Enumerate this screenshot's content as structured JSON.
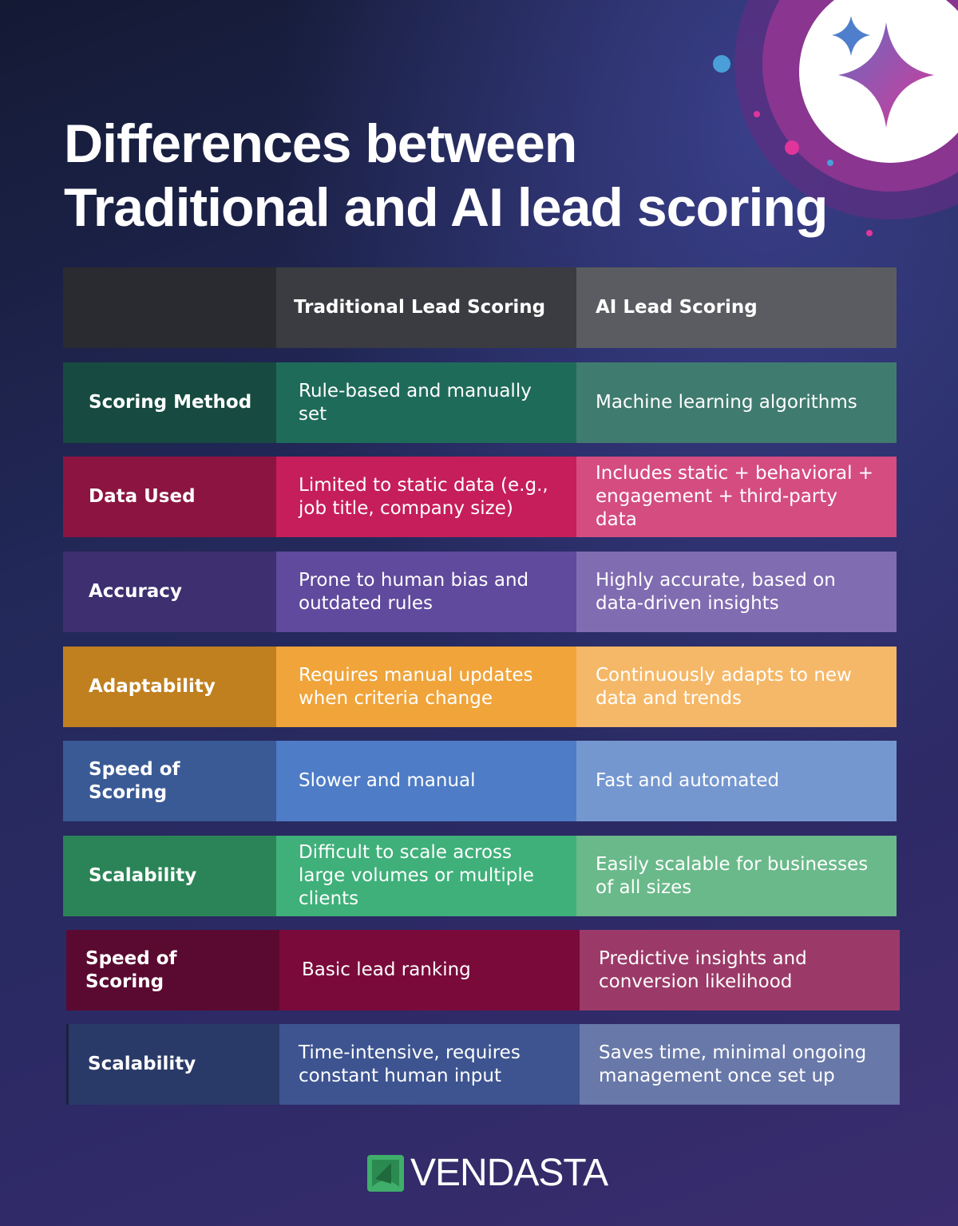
{
  "title_line1": "Differences between",
  "title_line2": "Traditional and AI lead scoring",
  "header": {
    "blank": "",
    "traditional": "Traditional Lead Scoring",
    "ai": "AI Lead Scoring",
    "colors": [
      "#2a2b30",
      "#3b3c41",
      "#5b5c61"
    ]
  },
  "rows": [
    {
      "label": "Scoring Method",
      "traditional": "Rule-based and manually set",
      "ai": "Machine learning algorithms",
      "colors": [
        "#174a40",
        "#1f6b5a",
        "#407b6f"
      ]
    },
    {
      "label": "Data Used",
      "traditional": "Limited to static data (e.g., job title, company size)",
      "ai": "Includes static + behavioral + engagement + third-party data",
      "colors": [
        "#8c1440",
        "#c61e5a",
        "#d44c80"
      ]
    },
    {
      "label": "Accuracy",
      "traditional": "Prone to human bias and outdated rules",
      "ai": "Highly accurate, based on data-driven insights",
      "colors": [
        "#3d2f70",
        "#5f4a9d",
        "#806cb1"
      ]
    },
    {
      "label": "Adaptability",
      "traditional": "Requires manual updates when criteria change",
      "ai": "Continuously adapts to new data and trends",
      "colors": [
        "#c0801f",
        "#f0a43a",
        "#f5b868"
      ]
    },
    {
      "label": "Speed of Scoring",
      "traditional": "Slower and manual",
      "ai": "Fast and automated",
      "colors": [
        "#3a5a95",
        "#4e7cc6",
        "#7597d0"
      ]
    },
    {
      "label": "Scalability",
      "traditional": "Difficult to scale across large volumes or multiple clients",
      "ai": "Easily scalable for businesses of all sizes",
      "colors": [
        "#2b8457",
        "#3fb07a",
        "#6ab98a"
      ]
    },
    {
      "label": "Speed of Scoring",
      "traditional": "Basic lead ranking",
      "ai": "Predictive insights and conversion likelihood",
      "colors": [
        "#5a0a30",
        "#7a0a3a",
        "#9b3a68"
      ]
    },
    {
      "label": "Scalability",
      "traditional": "Time-intensive, requires constant human input",
      "ai": "Saves time, minimal ongoing management once set up",
      "colors": [
        "#2a3a68",
        "#3d5490",
        "#6878a8"
      ]
    }
  ],
  "logo": {
    "text": "VENDASTA",
    "color": "#3fae6a"
  },
  "icons": [
    "sparkle-icon",
    "vendasta-logo-icon"
  ]
}
